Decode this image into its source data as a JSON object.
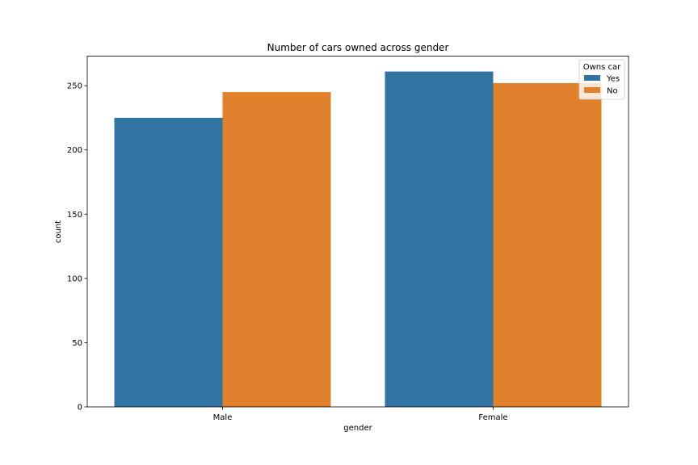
{
  "chart_data": {
    "type": "bar",
    "title": "Number of cars owned across gender",
    "xlabel": "gender",
    "ylabel": "count",
    "categories": [
      "Male",
      "Female"
    ],
    "series": [
      {
        "name": "Yes",
        "values": [
          225,
          261
        ],
        "color": "#3274a1"
      },
      {
        "name": "No",
        "values": [
          245,
          252
        ],
        "color": "#e1812c"
      }
    ],
    "ylim": [
      0,
      273
    ],
    "yticks": [
      0,
      50,
      100,
      150,
      200,
      250
    ],
    "legend": {
      "title": "Owns car",
      "placement": "top-right"
    },
    "grid": false
  }
}
